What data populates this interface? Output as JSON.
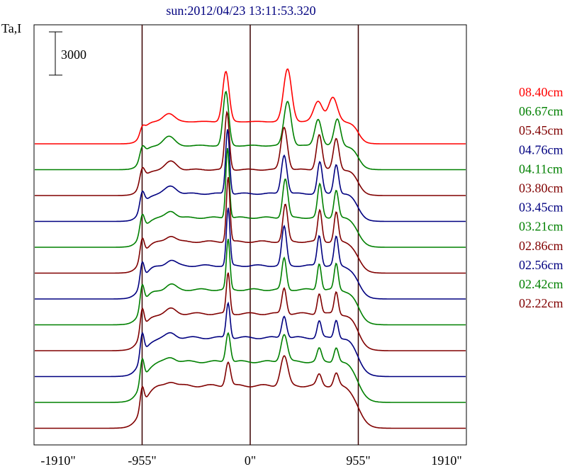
{
  "chart_data": {
    "type": "line",
    "title": "sun:2012/04/23 13:11:53.320",
    "ylabel": "Ta,I",
    "scale_bar_label": "3000",
    "x_ticks": [
      {
        "value": -1910,
        "label": "-1910\""
      },
      {
        "value": -955,
        "label": "-955\""
      },
      {
        "value": 0,
        "label": "0\""
      },
      {
        "value": 955,
        "label": "955\""
      },
      {
        "value": 1910,
        "label": "1910\""
      }
    ],
    "xlim": [
      -1910,
      1910
    ],
    "vertical_lines": [
      -955,
      0,
      955
    ],
    "series": [
      {
        "name": "08.40cm",
        "color": "#ff0000",
        "baseline": 0.0,
        "fw": 1.0,
        "wobble": 0.05,
        "peaks": [
          [
            -955,
            0.18,
            28
          ],
          [
            -720,
            0.22,
            70
          ],
          [
            -215,
            1.35,
            40
          ],
          [
            330,
            1.42,
            50
          ],
          [
            600,
            0.55,
            55
          ],
          [
            730,
            0.65,
            55
          ]
        ]
      },
      {
        "name": "06.67cm",
        "color": "#008000",
        "baseline": 0.0,
        "fw": 1.5,
        "wobble": 0.08,
        "peaks": [
          [
            -955,
            0.3,
            30
          ],
          [
            -720,
            0.25,
            70
          ],
          [
            -215,
            1.45,
            35
          ],
          [
            330,
            1.2,
            45
          ],
          [
            600,
            0.72,
            42
          ],
          [
            770,
            0.72,
            40
          ]
        ]
      },
      {
        "name": "05.45cm",
        "color": "#800000",
        "baseline": 0.0,
        "fw": 1.8,
        "wobble": 0.1,
        "peaks": [
          [
            -955,
            0.38,
            30
          ],
          [
            -700,
            0.22,
            70
          ],
          [
            -205,
            1.55,
            28
          ],
          [
            300,
            1.15,
            40
          ],
          [
            610,
            0.95,
            35
          ],
          [
            760,
            0.85,
            35
          ]
        ]
      },
      {
        "name": "04.76cm",
        "color": "#000080",
        "baseline": 0.0,
        "fw": 2.1,
        "wobble": 0.12,
        "peaks": [
          [
            -955,
            0.42,
            28
          ],
          [
            -700,
            0.2,
            70
          ],
          [
            -200,
            1.75,
            24
          ],
          [
            300,
            1.05,
            35
          ],
          [
            615,
            0.85,
            30
          ],
          [
            760,
            0.8,
            30
          ]
        ]
      },
      {
        "name": "04.11cm",
        "color": "#008000",
        "baseline": 0.0,
        "fw": 2.4,
        "wobble": 0.13,
        "peaks": [
          [
            -955,
            0.48,
            28
          ],
          [
            -700,
            0.18,
            60
          ],
          [
            -200,
            1.9,
            22
          ],
          [
            310,
            1.05,
            32
          ],
          [
            615,
            0.9,
            28
          ],
          [
            760,
            0.75,
            28
          ]
        ]
      },
      {
        "name": "03.80cm",
        "color": "#800000",
        "baseline": 0.0,
        "fw": 2.6,
        "wobble": 0.14,
        "peaks": [
          [
            -955,
            0.52,
            26
          ],
          [
            -700,
            0.16,
            60
          ],
          [
            -195,
            1.75,
            22
          ],
          [
            310,
            1.0,
            30
          ],
          [
            615,
            0.85,
            26
          ],
          [
            760,
            0.8,
            26
          ]
        ]
      },
      {
        "name": "03.45cm",
        "color": "#000080",
        "baseline": 0.0,
        "fw": 2.9,
        "wobble": 0.15,
        "peaks": [
          [
            -955,
            0.55,
            25
          ],
          [
            -700,
            0.15,
            60
          ],
          [
            -195,
            1.55,
            22
          ],
          [
            300,
            1.05,
            30
          ],
          [
            610,
            0.82,
            26
          ],
          [
            760,
            0.78,
            26
          ]
        ]
      },
      {
        "name": "03.21cm",
        "color": "#008000",
        "baseline": 0.0,
        "fw": 3.1,
        "wobble": 0.16,
        "peaks": [
          [
            -955,
            0.6,
            25
          ],
          [
            -700,
            0.14,
            60
          ],
          [
            -195,
            1.35,
            22
          ],
          [
            300,
            0.85,
            28
          ],
          [
            610,
            0.72,
            25
          ],
          [
            760,
            0.7,
            25
          ]
        ]
      },
      {
        "name": "02.86cm",
        "color": "#800000",
        "baseline": 0.0,
        "fw": 3.3,
        "wobble": 0.17,
        "peaks": [
          [
            -955,
            0.62,
            24
          ],
          [
            -700,
            0.13,
            60
          ],
          [
            -195,
            1.1,
            22
          ],
          [
            300,
            0.7,
            28
          ],
          [
            610,
            0.55,
            25
          ],
          [
            760,
            0.6,
            25
          ]
        ]
      },
      {
        "name": "02.56cm",
        "color": "#000080",
        "baseline": 0.0,
        "fw": 3.5,
        "wobble": 0.18,
        "peaks": [
          [
            -955,
            0.63,
            24
          ],
          [
            -700,
            0.12,
            60
          ],
          [
            -195,
            0.95,
            24
          ],
          [
            300,
            0.6,
            30
          ],
          [
            610,
            0.45,
            26
          ],
          [
            760,
            0.5,
            26
          ]
        ]
      },
      {
        "name": "02.42cm",
        "color": "#008000",
        "baseline": 0.0,
        "fw": 3.7,
        "wobble": 0.18,
        "peaks": [
          [
            -955,
            0.62,
            24
          ],
          [
            -700,
            0.12,
            60
          ],
          [
            -195,
            0.8,
            28
          ],
          [
            300,
            0.75,
            40
          ],
          [
            610,
            0.35,
            28
          ],
          [
            760,
            0.4,
            28
          ]
        ]
      },
      {
        "name": "02.22cm",
        "color": "#800000",
        "baseline": 0.0,
        "fw": 3.9,
        "wobble": 0.2,
        "peaks": [
          [
            -955,
            0.55,
            24
          ],
          [
            -700,
            0.12,
            60
          ],
          [
            -195,
            0.65,
            30
          ],
          [
            300,
            0.8,
            45
          ],
          [
            610,
            0.3,
            30
          ],
          [
            760,
            0.35,
            30
          ]
        ]
      }
    ]
  }
}
